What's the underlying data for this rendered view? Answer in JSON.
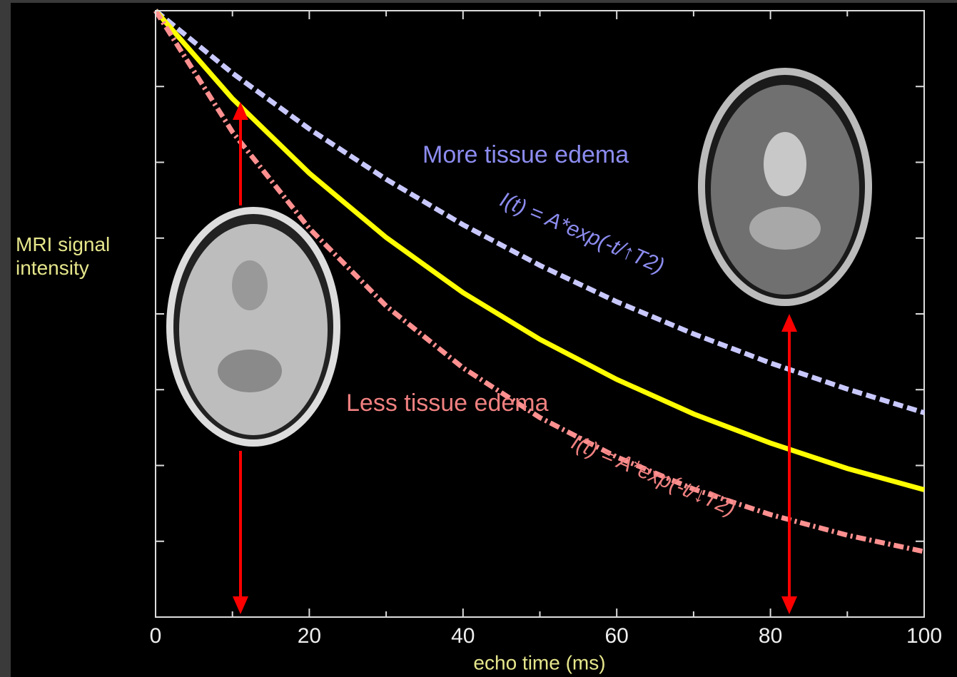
{
  "chart_data": {
    "type": "line",
    "xlabel": "echo time (ms)",
    "ylabel": "MRI signal intensity",
    "x": [
      0,
      10,
      20,
      30,
      40,
      50,
      60,
      70,
      80,
      90,
      100
    ],
    "xlim": [
      0,
      100
    ],
    "xticks": [
      0,
      20,
      40,
      60,
      80,
      100
    ],
    "xminor_ticks": [
      10,
      30,
      50,
      70,
      90
    ],
    "ylim": [
      0,
      1
    ],
    "yticks": [
      0,
      0.125,
      0.25,
      0.375,
      0.5,
      0.625,
      0.75,
      0.875,
      1
    ],
    "series": [
      {
        "color": "#c8c8ff",
        "style": "dashed",
        "values": [
          1,
          0.897,
          0.805,
          0.722,
          0.647,
          0.58,
          0.52,
          0.467,
          0.419,
          0.376,
          0.337
        ]
      },
      {
        "color": "#ffff00",
        "style": "solid",
        "values": [
          1,
          0.855,
          0.732,
          0.626,
          0.535,
          0.458,
          0.392,
          0.335,
          0.287,
          0.245,
          0.21
        ]
      },
      {
        "color": "#ff9090",
        "style": "dashdot",
        "values": [
          1,
          0.8,
          0.641,
          0.513,
          0.411,
          0.329,
          0.264,
          0.211,
          0.169,
          0.135,
          0.108
        ]
      }
    ],
    "annotations": [
      "More tissue edema",
      "I(t) = A*exp(-t/↑T2)",
      "Less tissue edema",
      "I(t) = A*exp(-t/↓T2)"
    ]
  }
}
